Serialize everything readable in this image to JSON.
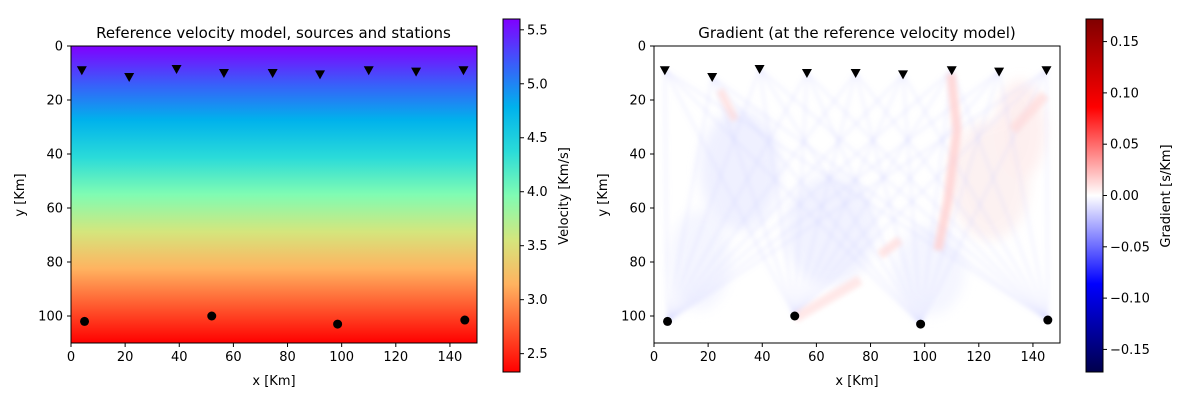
{
  "chart_data": [
    {
      "type": "heatmap",
      "title": "Reference velocity model, sources and stations",
      "xlabel": "x [Km]",
      "ylabel": "y [Km]",
      "xlim": [
        0,
        150
      ],
      "ylim": [
        110,
        0
      ],
      "xticks": [
        0,
        20,
        40,
        60,
        80,
        100,
        120,
        140
      ],
      "yticks": [
        0,
        20,
        40,
        60,
        80,
        100
      ],
      "colormap": "rainbow",
      "color_range": [
        2.33,
        5.6
      ],
      "colorbar": {
        "label": "Velocity [Km/s]",
        "ticks": [
          2.5,
          3.0,
          3.5,
          4.0,
          4.5,
          5.0,
          5.5
        ]
      },
      "velocity_profile": {
        "y": [
          0,
          110
        ],
        "v": [
          2.33,
          5.6
        ]
      },
      "stations": {
        "x": [
          4,
          21.5,
          39,
          56.5,
          74.5,
          92,
          110,
          127.5,
          145
        ],
        "y": [
          9,
          11.5,
          8.5,
          10,
          10,
          10.5,
          9,
          9.5,
          9
        ]
      },
      "sources": {
        "x": [
          5,
          52,
          98.5,
          145.5
        ],
        "y": [
          102,
          100,
          103,
          101.5
        ]
      }
    },
    {
      "type": "heatmap",
      "title": "Gradient (at the reference velocity model)",
      "xlabel": "x [Km]",
      "ylabel": "y [Km]",
      "xlim": [
        0,
        150
      ],
      "ylim": [
        110,
        0
      ],
      "xticks": [
        0,
        20,
        40,
        60,
        80,
        100,
        120,
        140
      ],
      "yticks": [
        0,
        20,
        40,
        60,
        80,
        100
      ],
      "colormap": "seismic",
      "color_range": [
        -0.172,
        0.172
      ],
      "colorbar": {
        "label": "Gradient [s/Km]",
        "ticks": [
          -0.15,
          -0.1,
          -0.05,
          0.0,
          0.05,
          0.1,
          0.15
        ]
      },
      "stations": {
        "x": [
          4,
          21.5,
          39,
          56.5,
          74.5,
          92,
          110,
          127.5,
          145
        ],
        "y": [
          9,
          11.5,
          8.5,
          10,
          10,
          10.5,
          9,
          9.5,
          9
        ]
      },
      "sources": {
        "x": [
          5,
          52,
          98.5,
          145.5
        ],
        "y": [
          102,
          100,
          103,
          101.5
        ]
      }
    }
  ]
}
